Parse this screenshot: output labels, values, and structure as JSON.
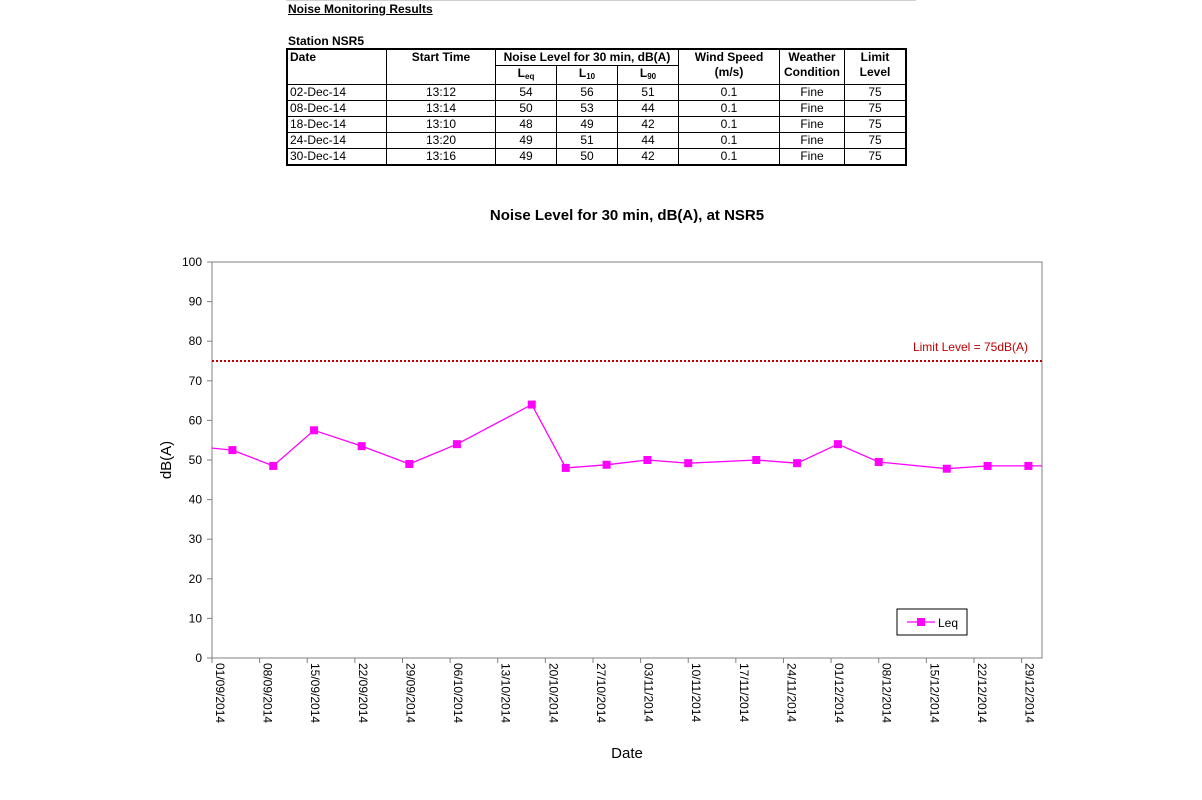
{
  "report": {
    "title": "Noise Monitoring Results",
    "station": "Station NSR5"
  },
  "table": {
    "headers": {
      "date": "Date",
      "start_time": "Start Time",
      "noise_level": "Noise Level for 30 min, dB(A)",
      "leq_main": "L",
      "leq_sub": "eq",
      "l10_main": "L",
      "l10_sub": "10",
      "l90_main": "L",
      "l90_sub": "90",
      "wind_speed": "Wind Speed",
      "wind_unit": "(m/s)",
      "weather": "Weather",
      "weather2": "Condition",
      "limit": "Limit",
      "limit2": "Level"
    },
    "rows": [
      {
        "date": "02-Dec-14",
        "time": "13:12",
        "leq": "54",
        "l10": "56",
        "l90": "51",
        "wind": "0.1",
        "weather": "Fine",
        "limit": "75"
      },
      {
        "date": "08-Dec-14",
        "time": "13:14",
        "leq": "50",
        "l10": "53",
        "l90": "44",
        "wind": "0.1",
        "weather": "Fine",
        "limit": "75"
      },
      {
        "date": "18-Dec-14",
        "time": "13:10",
        "leq": "48",
        "l10": "49",
        "l90": "42",
        "wind": "0.1",
        "weather": "Fine",
        "limit": "75"
      },
      {
        "date": "24-Dec-14",
        "time": "13:20",
        "leq": "49",
        "l10": "51",
        "l90": "44",
        "wind": "0.1",
        "weather": "Fine",
        "limit": "75"
      },
      {
        "date": "30-Dec-14",
        "time": "13:16",
        "leq": "49",
        "l10": "50",
        "l90": "42",
        "wind": "0.1",
        "weather": "Fine",
        "limit": "75"
      }
    ]
  },
  "chart_data": {
    "type": "line",
    "title": "Noise Level for 30 min,  dB(A), at NSR5",
    "xlabel": "Date",
    "ylabel": "dB(A)",
    "x_start": "2014-09-01",
    "x_end": "2015-01-01",
    "ylim": [
      0,
      100
    ],
    "yticks": [
      0,
      10,
      20,
      30,
      40,
      50,
      60,
      70,
      80,
      90,
      100
    ],
    "xtick_labels": [
      "01/09/2014",
      "08/09/2014",
      "15/09/2014",
      "22/09/2014",
      "29/09/2014",
      "06/10/2014",
      "13/10/2014",
      "20/10/2014",
      "27/10/2014",
      "03/11/2014",
      "10/11/2014",
      "17/11/2014",
      "24/11/2014",
      "01/12/2014",
      "08/12/2014",
      "15/12/2014",
      "22/12/2014",
      "29/12/2014"
    ],
    "grid": false,
    "legend": "bottom-right",
    "limit_line": {
      "value": 75,
      "label": "Limit Level  = 75dB(A)",
      "color": "#c00000"
    },
    "series": [
      {
        "name": "Leq",
        "color": "#ff00ff",
        "x": [
          "2014-09-01",
          "2014-09-04",
          "2014-09-10",
          "2014-09-16",
          "2014-09-23",
          "2014-09-30",
          "2014-10-07",
          "2014-10-18",
          "2014-10-23",
          "2014-10-29",
          "2014-11-04",
          "2014-11-10",
          "2014-11-20",
          "2014-11-26",
          "2014-12-02",
          "2014-12-08",
          "2014-12-18",
          "2014-12-24",
          "2014-12-30",
          "2015-01-01"
        ],
        "y": [
          53,
          52.5,
          48.5,
          57.5,
          53.5,
          49,
          54,
          64,
          48,
          48.8,
          50,
          49.2,
          50,
          49.2,
          54,
          49.5,
          47.8,
          48.5,
          48.5,
          48.5
        ],
        "markers": [
          false,
          true,
          true,
          true,
          true,
          true,
          true,
          true,
          true,
          true,
          true,
          true,
          true,
          true,
          true,
          true,
          true,
          true,
          true,
          false
        ]
      }
    ]
  }
}
